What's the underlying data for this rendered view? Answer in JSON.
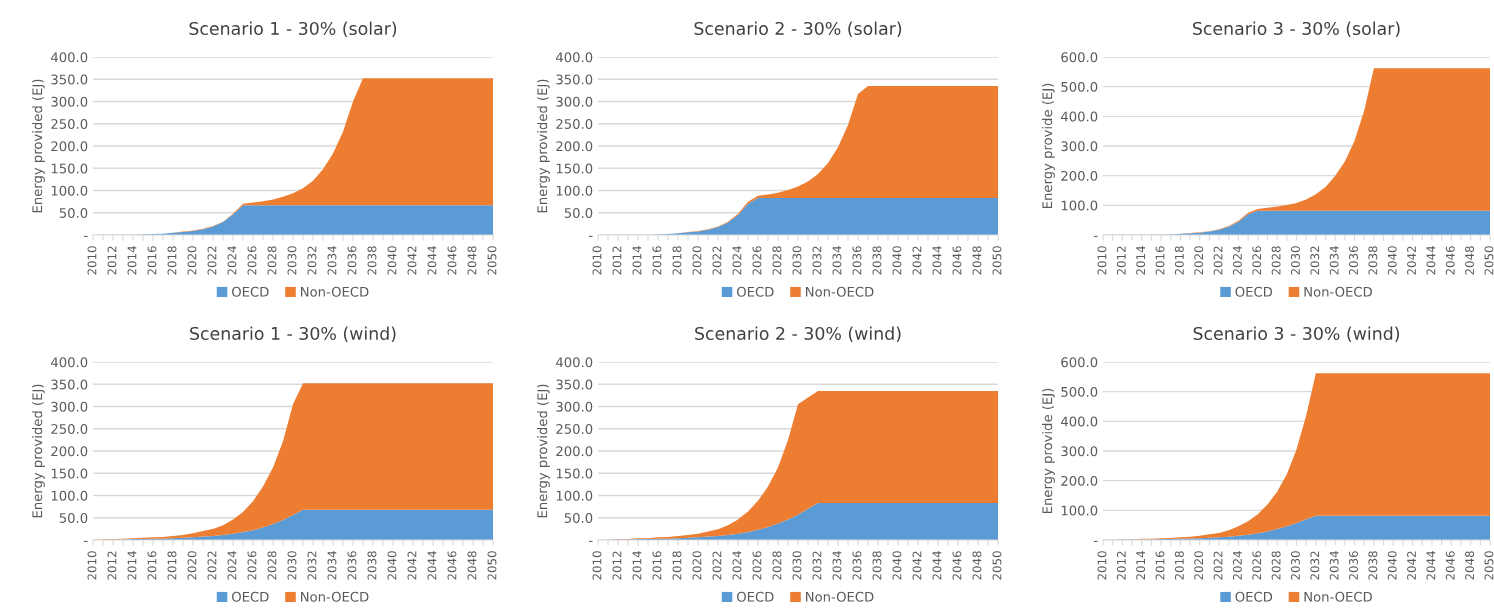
{
  "chart_data": [
    {
      "type": "area",
      "stacked": true,
      "title": "Scenario 1 - 30% (solar)",
      "ylabel": "Energy provided (EJ)",
      "grid": "y",
      "legend": "bottom",
      "categories": [
        "2010",
        null,
        "2012",
        null,
        "2014",
        null,
        "2016",
        null,
        "2018",
        null,
        "2020",
        null,
        "2022",
        null,
        "2024",
        null,
        "2026",
        null,
        "2028",
        null,
        "2030",
        null,
        "2032",
        null,
        "2034",
        null,
        "2036",
        null,
        "2038",
        null,
        "2040",
        null,
        "2042",
        null,
        "2044",
        null,
        "2046",
        null,
        "2048",
        null,
        "2050"
      ],
      "ylim": [
        0,
        400
      ],
      "yticks": [
        {
          "value": 0,
          "label": "-"
        },
        {
          "value": 50,
          "label": "50.0"
        },
        {
          "value": 100,
          "label": "100.0"
        },
        {
          "value": 150,
          "label": "150.0"
        },
        {
          "value": 200,
          "label": "200.0"
        },
        {
          "value": 250,
          "label": "250.0"
        },
        {
          "value": 300,
          "label": "300.0"
        },
        {
          "value": 350,
          "label": "350.0"
        },
        {
          "value": 400,
          "label": "400.0"
        }
      ],
      "series": [
        {
          "name": "OECD",
          "color": "#5b9bd5",
          "values": [
            0,
            0,
            0,
            0,
            0,
            1,
            2,
            3,
            5,
            7,
            9,
            13,
            19,
            29,
            46,
            67,
            67,
            67,
            67,
            67,
            67,
            67,
            67,
            67,
            67,
            67,
            67,
            67,
            67,
            67,
            67,
            67,
            67,
            67,
            67,
            67,
            67,
            67,
            67,
            67,
            67
          ]
        },
        {
          "name": "Non-OECD",
          "color": "#ed7d31",
          "values": [
            0,
            0,
            0,
            0,
            0,
            0,
            0,
            0,
            0,
            1,
            1,
            1,
            1,
            1,
            2,
            3,
            6,
            9,
            13,
            19,
            27,
            38,
            55,
            81,
            116,
            165,
            233,
            285,
            285,
            285,
            285,
            285,
            285,
            285,
            285,
            285,
            285,
            285,
            285,
            285,
            285
          ]
        }
      ]
    },
    {
      "type": "area",
      "stacked": true,
      "title": "Scenario 2 - 30% (solar)",
      "ylabel": "Energy provided (EJ)",
      "grid": "y",
      "legend": "bottom",
      "categories": [
        "2010",
        null,
        "2012",
        null,
        "2014",
        null,
        "2016",
        null,
        "2018",
        null,
        "2020",
        null,
        "2022",
        null,
        "2024",
        null,
        "2026",
        null,
        "2028",
        null,
        "2030",
        null,
        "2032",
        null,
        "2034",
        null,
        "2036",
        null,
        "2038",
        null,
        "2040",
        null,
        "2042",
        null,
        "2044",
        null,
        "2046",
        null,
        "2048",
        null,
        "2050"
      ],
      "ylim": [
        0,
        400
      ],
      "yticks": [
        {
          "value": 0,
          "label": "-"
        },
        {
          "value": 50,
          "label": "50.0"
        },
        {
          "value": 100,
          "label": "100.0"
        },
        {
          "value": 150,
          "label": "150.0"
        },
        {
          "value": 200,
          "label": "200.0"
        },
        {
          "value": 250,
          "label": "250.0"
        },
        {
          "value": 300,
          "label": "300.0"
        },
        {
          "value": 350,
          "label": "350.0"
        },
        {
          "value": 400,
          "label": "400.0"
        }
      ],
      "series": [
        {
          "name": "OECD",
          "color": "#5b9bd5",
          "values": [
            0,
            0,
            0,
            0,
            0,
            0,
            1,
            2,
            4,
            6,
            8,
            12,
            18,
            28,
            45,
            70,
            83,
            83,
            83,
            83,
            83,
            83,
            83,
            83,
            83,
            83,
            83,
            83,
            83,
            83,
            83,
            83,
            83,
            83,
            83,
            83,
            83,
            83,
            83,
            83,
            83
          ]
        },
        {
          "name": "Non-OECD",
          "color": "#ed7d31",
          "values": [
            0,
            0,
            0,
            0,
            0,
            0,
            0,
            0,
            0,
            1,
            1,
            1,
            1,
            2,
            3,
            5,
            5,
            8,
            12,
            18,
            26,
            37,
            54,
            79,
            114,
            164,
            234,
            252,
            252,
            252,
            252,
            252,
            252,
            252,
            252,
            252,
            252,
            252,
            252,
            252,
            252
          ]
        }
      ]
    },
    {
      "type": "area",
      "stacked": true,
      "title": "Scenario 3 - 30% (solar)",
      "ylabel": "Energy provide (EJ)",
      "grid": "y",
      "legend": "bottom",
      "categories": [
        "2010",
        null,
        "2012",
        null,
        "2014",
        null,
        "2016",
        null,
        "2018",
        null,
        "2020",
        null,
        "2022",
        null,
        "2024",
        null,
        "2026",
        null,
        "2028",
        null,
        "2030",
        null,
        "2032",
        null,
        "2034",
        null,
        "2036",
        null,
        "2038",
        null,
        "2040",
        null,
        "2042",
        null,
        "2044",
        null,
        "2046",
        null,
        "2048",
        null,
        "2050"
      ],
      "ylim": [
        0,
        600
      ],
      "yticks": [
        {
          "value": 0,
          "label": "-"
        },
        {
          "value": 100,
          "label": "100.0"
        },
        {
          "value": 200,
          "label": "200.0"
        },
        {
          "value": 300,
          "label": "300.0"
        },
        {
          "value": 400,
          "label": "400.0"
        },
        {
          "value": 500,
          "label": "500.0"
        },
        {
          "value": 600,
          "label": "600.0"
        }
      ],
      "series": [
        {
          "name": "OECD",
          "color": "#5b9bd5",
          "values": [
            0,
            0,
            0,
            0,
            0,
            0,
            1,
            2,
            4,
            6,
            8,
            12,
            18,
            28,
            45,
            70,
            82,
            82,
            82,
            82,
            82,
            82,
            82,
            82,
            82,
            82,
            82,
            82,
            82,
            82,
            82,
            82,
            82,
            82,
            82,
            82,
            82,
            82,
            82,
            82,
            82
          ]
        },
        {
          "name": "Non-OECD",
          "color": "#ed7d31",
          "values": [
            0,
            0,
            0,
            0,
            0,
            0,
            0,
            0,
            0,
            1,
            1,
            1,
            1,
            2,
            3,
            5,
            6,
            10,
            14,
            19,
            26,
            38,
            55,
            80,
            118,
            166,
            236,
            338,
            480,
            480,
            480,
            480,
            480,
            480,
            480,
            480,
            480,
            480,
            480,
            480,
            480
          ]
        }
      ]
    },
    {
      "type": "area",
      "stacked": true,
      "title": "Scenario 1 - 30% (wind)",
      "ylabel": "Energy provided (EJ)",
      "grid": "y",
      "legend": "bottom",
      "categories": [
        "2010",
        null,
        "2012",
        null,
        "2014",
        null,
        "2016",
        null,
        "2018",
        null,
        "2020",
        null,
        "2022",
        null,
        "2024",
        null,
        "2026",
        null,
        "2028",
        null,
        "2030",
        null,
        "2032",
        null,
        "2034",
        null,
        "2036",
        null,
        "2038",
        null,
        "2040",
        null,
        "2042",
        null,
        "2044",
        null,
        "2046",
        null,
        "2048",
        null,
        "2050"
      ],
      "ylim": [
        0,
        400
      ],
      "yticks": [
        {
          "value": 0,
          "label": "-"
        },
        {
          "value": 50,
          "label": "50.0"
        },
        {
          "value": 100,
          "label": "100.0"
        },
        {
          "value": 150,
          "label": "150.0"
        },
        {
          "value": 200,
          "label": "200.0"
        },
        {
          "value": 250,
          "label": "250.0"
        },
        {
          "value": 300,
          "label": "300.0"
        },
        {
          "value": 350,
          "label": "350.0"
        },
        {
          "value": 400,
          "label": "400.0"
        }
      ],
      "series": [
        {
          "name": "OECD",
          "color": "#5b9bd5",
          "values": [
            0,
            0,
            1,
            1,
            2,
            2,
            3,
            3,
            4,
            5,
            6,
            8,
            9,
            11,
            14,
            18,
            22,
            28,
            36,
            45,
            56,
            68,
            68,
            68,
            68,
            68,
            68,
            68,
            68,
            68,
            68,
            68,
            68,
            68,
            68,
            68,
            68,
            68,
            68,
            68,
            68
          ]
        },
        {
          "name": "Non-OECD",
          "color": "#ed7d31",
          "values": [
            0,
            1,
            1,
            2,
            2,
            3,
            3,
            4,
            5,
            6,
            9,
            12,
            16,
            22,
            32,
            45,
            65,
            92,
            127,
            177,
            249,
            284,
            284,
            284,
            284,
            284,
            284,
            284,
            284,
            284,
            284,
            284,
            284,
            284,
            284,
            284,
            284,
            284,
            284,
            284,
            284
          ]
        }
      ]
    },
    {
      "type": "area",
      "stacked": true,
      "title": "Scenario 2 - 30% (wind)",
      "ylabel": "Energy provided (EJ)",
      "grid": "y",
      "legend": "bottom",
      "categories": [
        "2010",
        null,
        "2012",
        null,
        "2014",
        null,
        "2016",
        null,
        "2018",
        null,
        "2020",
        null,
        "2022",
        null,
        "2024",
        null,
        "2026",
        null,
        "2028",
        null,
        "2030",
        null,
        "2032",
        null,
        "2034",
        null,
        "2036",
        null,
        "2038",
        null,
        "2040",
        null,
        "2042",
        null,
        "2044",
        null,
        "2046",
        null,
        "2048",
        null,
        "2050"
      ],
      "ylim": [
        0,
        400
      ],
      "yticks": [
        {
          "value": 0,
          "label": "-"
        },
        {
          "value": 50,
          "label": "50.0"
        },
        {
          "value": 100,
          "label": "100.0"
        },
        {
          "value": 150,
          "label": "150.0"
        },
        {
          "value": 200,
          "label": "200.0"
        },
        {
          "value": 250,
          "label": "250.0"
        },
        {
          "value": 300,
          "label": "300.0"
        },
        {
          "value": 350,
          "label": "350.0"
        },
        {
          "value": 400,
          "label": "400.0"
        }
      ],
      "series": [
        {
          "name": "OECD",
          "color": "#5b9bd5",
          "values": [
            0,
            0,
            1,
            1,
            2,
            2,
            3,
            3,
            4,
            5,
            6,
            8,
            9,
            11,
            14,
            18,
            23,
            29,
            37,
            46,
            57,
            70,
            83,
            83,
            83,
            83,
            83,
            83,
            83,
            83,
            83,
            83,
            83,
            83,
            83,
            83,
            83,
            83,
            83,
            83,
            83
          ]
        },
        {
          "name": "Non-OECD",
          "color": "#ed7d31",
          "values": [
            0,
            0,
            1,
            1,
            2,
            2,
            3,
            4,
            5,
            6,
            8,
            11,
            15,
            22,
            32,
            46,
            65,
            91,
            126,
            179,
            248,
            250,
            252,
            252,
            252,
            252,
            252,
            252,
            252,
            252,
            252,
            252,
            252,
            252,
            252,
            252,
            252,
            252,
            252,
            252,
            252
          ]
        }
      ]
    },
    {
      "type": "area",
      "stacked": true,
      "title": "Scenario 3 - 30% (wind)",
      "ylabel": "Energy provide (EJ)",
      "grid": "y",
      "legend": "bottom",
      "categories": [
        "2010",
        null,
        "2012",
        null,
        "2014",
        null,
        "2016",
        null,
        "2018",
        null,
        "2020",
        null,
        "2022",
        null,
        "2024",
        null,
        "2026",
        null,
        "2028",
        null,
        "2030",
        null,
        "2032",
        null,
        "2034",
        null,
        "2036",
        null,
        "2038",
        null,
        "2040",
        null,
        "2042",
        null,
        "2044",
        null,
        "2046",
        null,
        "2048",
        null,
        "2050"
      ],
      "ylim": [
        0,
        600
      ],
      "yticks": [
        {
          "value": 0,
          "label": "-"
        },
        {
          "value": 100,
          "label": "100.0"
        },
        {
          "value": 200,
          "label": "200.0"
        },
        {
          "value": 300,
          "label": "300.0"
        },
        {
          "value": 400,
          "label": "400.0"
        },
        {
          "value": 500,
          "label": "500.0"
        },
        {
          "value": 600,
          "label": "600.0"
        }
      ],
      "series": [
        {
          "name": "OECD",
          "color": "#5b9bd5",
          "values": [
            0,
            0,
            1,
            1,
            2,
            2,
            3,
            3,
            4,
            5,
            6,
            8,
            9,
            11,
            14,
            18,
            23,
            29,
            37,
            46,
            57,
            70,
            82,
            82,
            82,
            82,
            82,
            82,
            82,
            82,
            82,
            82,
            82,
            82,
            82,
            82,
            82,
            82,
            82,
            82,
            82
          ]
        },
        {
          "name": "Non-OECD",
          "color": "#ed7d31",
          "values": [
            0,
            0,
            1,
            1,
            2,
            2,
            3,
            4,
            5,
            6,
            8,
            11,
            15,
            22,
            32,
            45,
            64,
            91,
            126,
            176,
            248,
            350,
            480,
            480,
            480,
            480,
            480,
            480,
            480,
            480,
            480,
            480,
            480,
            480,
            480,
            480,
            480,
            480,
            480,
            480,
            480
          ]
        }
      ]
    }
  ]
}
